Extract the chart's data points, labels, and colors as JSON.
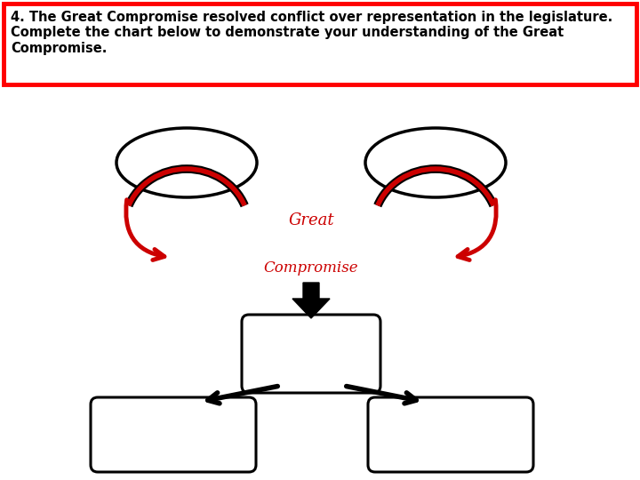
{
  "title_text": "4. The Great Compromise resolved conflict over representation in the legislature.\nComplete the chart below to demonstrate your understanding of the Great\nCompromise.",
  "title_box_color": "#ff0000",
  "title_text_color": "#000000",
  "background_color": "#ffffff",
  "great_color": "#cc0000",
  "compromise_color": "#cc0000",
  "arrow_color": "#cc0000",
  "box_color": "#000000",
  "great_label": "Great",
  "compromise_label": "Compromise"
}
